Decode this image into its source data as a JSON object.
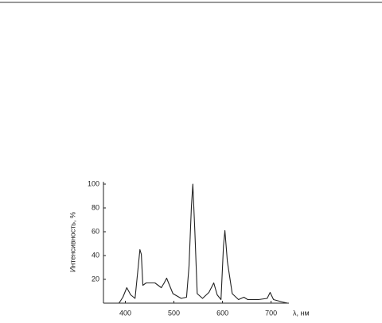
{
  "chart_data": {
    "type": "line",
    "y_label": "Интенсивность, %",
    "x_label": "λ, нм",
    "x": [
      387,
      395,
      403,
      411,
      420,
      426,
      430,
      433,
      436,
      443,
      461,
      474,
      480,
      485,
      490,
      498,
      515,
      526,
      531,
      536,
      539,
      543,
      548,
      559,
      572,
      582,
      589,
      597,
      602,
      605,
      610,
      620,
      633,
      644,
      652,
      674,
      692,
      698,
      705,
      723,
      734
    ],
    "values": [
      0,
      5,
      13,
      7,
      4,
      28,
      45,
      41,
      15,
      17,
      17,
      13,
      17,
      21,
      16,
      8,
      4,
      5,
      31,
      81,
      100,
      61,
      8,
      4,
      9,
      17,
      7,
      3,
      48,
      61,
      35,
      8,
      3,
      5,
      3,
      3,
      4,
      9,
      3,
      1,
      0
    ],
    "color": "#222222",
    "xlim": [
      355,
      735
    ],
    "xticks": [
      400,
      500,
      600,
      700
    ],
    "ylim": [
      0,
      100
    ],
    "yticks": [
      20,
      40,
      60,
      80,
      100
    ]
  }
}
